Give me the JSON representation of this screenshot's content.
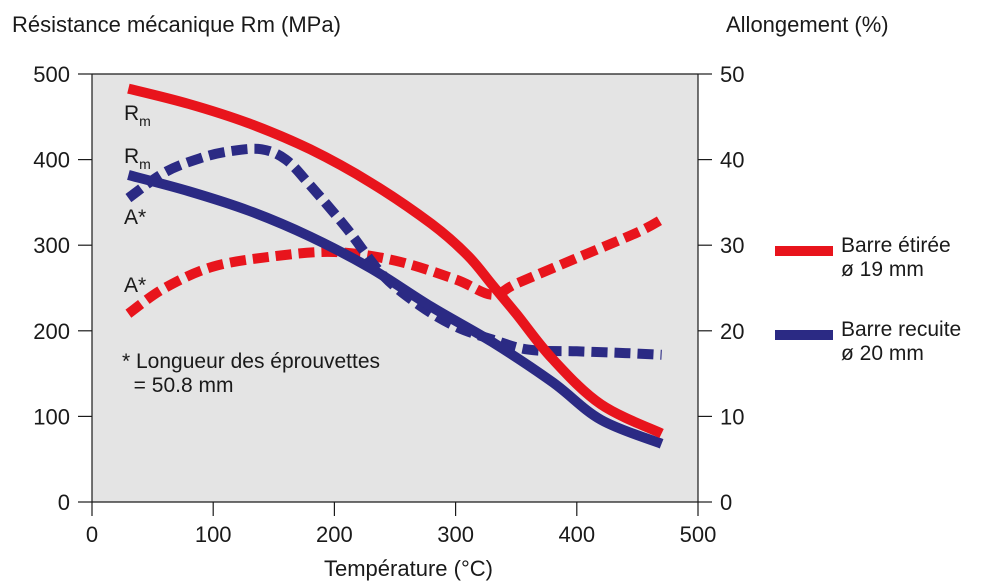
{
  "chart_data": {
    "type": "line",
    "ylabel_left": "Résistance mécanique Rm (MPa)",
    "ylabel_right": "Allongement (%)",
    "xlabel": "Température (°C)",
    "xlim": [
      0,
      500
    ],
    "ylim_left": [
      0,
      500
    ],
    "ylim_right": [
      0,
      50
    ],
    "x_ticks": [
      0,
      100,
      200,
      300,
      400,
      500
    ],
    "y_left_ticks": [
      0,
      100,
      200,
      300,
      400,
      500
    ],
    "y_right_ticks": [
      0,
      10,
      20,
      30,
      40,
      50
    ],
    "grid": false,
    "legend_position": "right",
    "annotation": "* Longueur des éprouvettes\n = 50.8 mm",
    "series": [
      {
        "name": "Barre étirée ø 19 mm",
        "quantity": "Rm",
        "axis": "left",
        "style": "solid",
        "color": "#e8141c",
        "label": "Rm",
        "x": [
          30,
          80,
          130,
          180,
          230,
          280,
          310,
          330,
          350,
          380,
          420,
          470
        ],
        "y": [
          483,
          465,
          442,
          412,
          373,
          325,
          288,
          254,
          220,
          167,
          114,
          80
        ]
      },
      {
        "name": "Barre étirée ø 19 mm",
        "quantity": "A",
        "axis": "right",
        "style": "dashed",
        "color": "#e8141c",
        "label": "A*",
        "x": [
          30,
          60,
          100,
          150,
          200,
          250,
          300,
          330,
          350,
          400,
          450,
          470
        ],
        "y": [
          22,
          25,
          27.5,
          28.7,
          29.2,
          28.2,
          26,
          24.2,
          25.5,
          28.5,
          31.5,
          33
        ]
      },
      {
        "name": "Barre recuite ø 20 mm",
        "quantity": "Rm",
        "axis": "left",
        "style": "solid",
        "color": "#2b2a84",
        "label": "Rm",
        "x": [
          30,
          80,
          130,
          180,
          230,
          280,
          330,
          380,
          420,
          470
        ],
        "y": [
          382,
          363,
          340,
          310,
          273,
          228,
          187,
          140,
          96,
          68
        ]
      },
      {
        "name": "Barre recuite ø 20 mm",
        "quantity": "A",
        "axis": "right",
        "style": "dashed",
        "color": "#2b2a84",
        "label": "A*",
        "x": [
          30,
          60,
          90,
          115,
          140,
          160,
          180,
          210,
          240,
          270,
          300,
          330,
          360,
          400,
          440,
          470
        ],
        "y": [
          35.5,
          38.5,
          40.2,
          41,
          41.2,
          40,
          37,
          32,
          26.5,
          23,
          20.5,
          19,
          17.8,
          17.6,
          17.4,
          17.2
        ]
      }
    ]
  },
  "labels": {
    "rm_red": "R",
    "rm_blue": "R",
    "subscript": "m",
    "a_blue": "A*",
    "a_red": "A*"
  },
  "legend": {
    "items": [
      {
        "label": "Barre étirée\nø 19 mm",
        "color": "#e8141c"
      },
      {
        "label": "Barre recuite\nø 20 mm",
        "color": "#2b2a84"
      }
    ]
  },
  "colors": {
    "plot_background": "#e4e4e4",
    "axis": "#1a1a1a"
  }
}
